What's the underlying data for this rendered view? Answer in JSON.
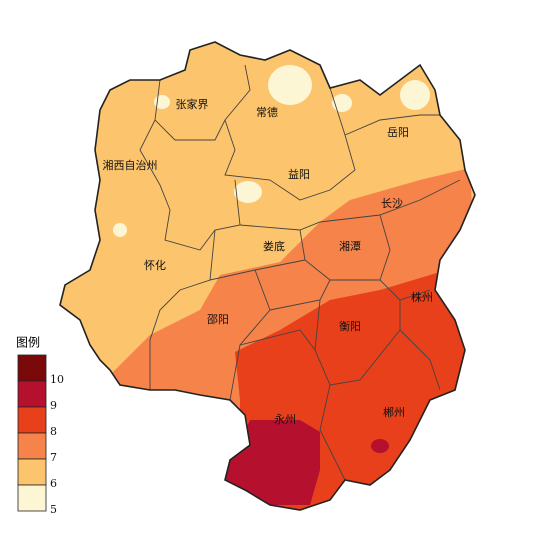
{
  "map": {
    "cities": [
      {
        "label": "张家界"
      },
      {
        "label": "常德"
      },
      {
        "label": "岳阳"
      },
      {
        "label": "湘西自治州"
      },
      {
        "label": "益阳"
      },
      {
        "label": "长沙"
      },
      {
        "label": "怀化"
      },
      {
        "label": "娄底"
      },
      {
        "label": "湘潭"
      },
      {
        "label": "邵阳"
      },
      {
        "label": "株州"
      },
      {
        "label": "衡阳"
      },
      {
        "label": "永州"
      },
      {
        "label": "郴州"
      }
    ],
    "legend": {
      "title": "图例",
      "levels": [
        {
          "value": 10,
          "color": "#7a0a0a"
        },
        {
          "value": 9,
          "color": "#b5102e"
        },
        {
          "value": 8,
          "color": "#e8401a"
        },
        {
          "value": 7,
          "color": "#f5834a"
        },
        {
          "value": 6,
          "color": "#fcc46c"
        },
        {
          "value": 5,
          "color": "#fdf6d4"
        }
      ]
    }
  }
}
